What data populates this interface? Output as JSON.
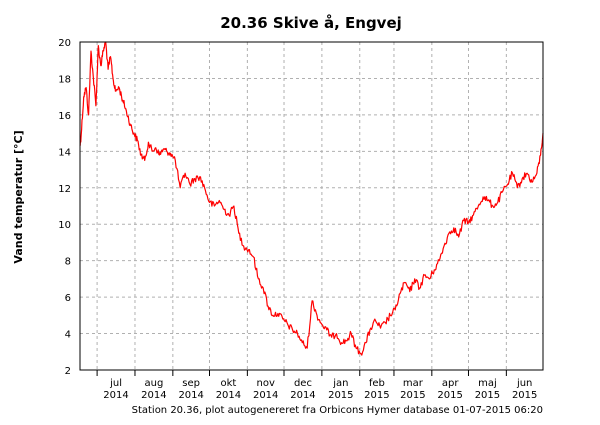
{
  "chart_data": {
    "type": "line",
    "title": "20.36 Skive å, Engvej",
    "ylabel": "Vand temperatur [°C]",
    "xlabel": "",
    "ylim": [
      2,
      20
    ],
    "yticks": [
      2,
      4,
      6,
      8,
      10,
      12,
      14,
      16,
      18,
      20
    ],
    "xlim": [
      "2014-06-17",
      "2015-07-01"
    ],
    "xticks": [
      {
        "date": "2014-07-01",
        "month": "jul",
        "year": "2014"
      },
      {
        "date": "2014-08-01",
        "month": "aug",
        "year": "2014"
      },
      {
        "date": "2014-09-01",
        "month": "sep",
        "year": "2014"
      },
      {
        "date": "2014-10-01",
        "month": "okt",
        "year": "2014"
      },
      {
        "date": "2014-11-01",
        "month": "nov",
        "year": "2014"
      },
      {
        "date": "2014-12-01",
        "month": "dec",
        "year": "2014"
      },
      {
        "date": "2015-01-01",
        "month": "jan",
        "year": "2015"
      },
      {
        "date": "2015-02-01",
        "month": "feb",
        "year": "2015"
      },
      {
        "date": "2015-03-01",
        "month": "mar",
        "year": "2015"
      },
      {
        "date": "2015-04-01",
        "month": "apr",
        "year": "2015"
      },
      {
        "date": "2015-05-01",
        "month": "maj",
        "year": "2015"
      },
      {
        "date": "2015-06-01",
        "month": "jun",
        "year": "2015"
      }
    ],
    "grid": true,
    "series": [
      {
        "color": "#ff0000",
        "x": [
          "2014-06-17",
          "2014-06-18",
          "2014-06-20",
          "2014-06-22",
          "2014-06-24",
          "2014-06-26",
          "2014-06-28",
          "2014-06-30",
          "2014-07-02",
          "2014-07-04",
          "2014-07-06",
          "2014-07-08",
          "2014-07-10",
          "2014-07-12",
          "2014-07-14",
          "2014-07-16",
          "2014-07-19",
          "2014-07-22",
          "2014-07-25",
          "2014-07-28",
          "2014-07-31",
          "2014-08-03",
          "2014-08-06",
          "2014-08-09",
          "2014-08-12",
          "2014-08-15",
          "2014-08-18",
          "2014-08-21",
          "2014-08-24",
          "2014-08-27",
          "2014-08-30",
          "2014-09-03",
          "2014-09-07",
          "2014-09-11",
          "2014-09-15",
          "2014-09-19",
          "2014-09-23",
          "2014-09-27",
          "2014-10-01",
          "2014-10-05",
          "2014-10-09",
          "2014-10-13",
          "2014-10-17",
          "2014-10-21",
          "2014-10-25",
          "2014-10-29",
          "2014-11-02",
          "2014-11-06",
          "2014-11-10",
          "2014-11-14",
          "2014-11-18",
          "2014-11-22",
          "2014-11-26",
          "2014-11-30",
          "2014-12-04",
          "2014-12-08",
          "2014-12-12",
          "2014-12-16",
          "2014-12-20",
          "2014-12-24",
          "2014-12-28",
          "2015-01-01",
          "2015-01-05",
          "2015-01-09",
          "2015-01-13",
          "2015-01-17",
          "2015-01-21",
          "2015-01-25",
          "2015-01-29",
          "2015-02-02",
          "2015-02-06",
          "2015-02-10",
          "2015-02-14",
          "2015-02-18",
          "2015-02-22",
          "2015-02-26",
          "2015-03-02",
          "2015-03-06",
          "2015-03-10",
          "2015-03-14",
          "2015-03-18",
          "2015-03-22",
          "2015-03-26",
          "2015-03-30",
          "2015-04-03",
          "2015-04-07",
          "2015-04-11",
          "2015-04-15",
          "2015-04-19",
          "2015-04-23",
          "2015-04-27",
          "2015-05-01",
          "2015-05-05",
          "2015-05-09",
          "2015-05-13",
          "2015-05-17",
          "2015-05-21",
          "2015-05-25",
          "2015-05-29",
          "2015-06-02",
          "2015-06-06",
          "2015-06-10",
          "2015-06-14",
          "2015-06-18",
          "2015-06-22",
          "2015-06-26",
          "2015-06-29",
          "2015-07-01"
        ],
        "values": [
          14.3,
          14.9,
          17.0,
          17.5,
          16.0,
          19.5,
          18.0,
          16.5,
          19.8,
          18.7,
          19.5,
          20.0,
          18.5,
          19.2,
          18.0,
          17.3,
          17.5,
          16.8,
          16.2,
          15.5,
          15.0,
          14.6,
          13.8,
          13.5,
          14.5,
          14.0,
          14.2,
          13.8,
          14.1,
          14.0,
          13.9,
          13.5,
          12.0,
          12.8,
          12.2,
          12.5,
          12.6,
          12.0,
          11.2,
          11.0,
          11.3,
          10.8,
          10.5,
          11.0,
          9.5,
          8.8,
          8.6,
          8.2,
          7.0,
          6.5,
          5.5,
          5.0,
          5.1,
          4.8,
          4.5,
          4.2,
          4.0,
          3.5,
          3.2,
          5.8,
          5.0,
          4.5,
          4.2,
          3.8,
          4.0,
          3.5,
          3.6,
          4.0,
          3.2,
          2.9,
          3.5,
          4.3,
          4.7,
          4.3,
          4.6,
          5.0,
          5.3,
          6.2,
          6.8,
          6.3,
          7.0,
          6.5,
          7.2,
          7.0,
          7.5,
          8.0,
          8.8,
          9.5,
          9.8,
          9.3,
          10.2,
          10.1,
          10.5,
          11.0,
          11.5,
          11.3,
          11.0,
          11.2,
          11.8,
          12.2,
          12.8,
          12.0,
          12.5,
          12.8,
          12.3,
          12.8,
          13.8,
          15.0
        ]
      }
    ]
  },
  "footer": "Station 20.36, plot autogenereret fra Orbicons Hymer database 01-07-2015 06:20"
}
